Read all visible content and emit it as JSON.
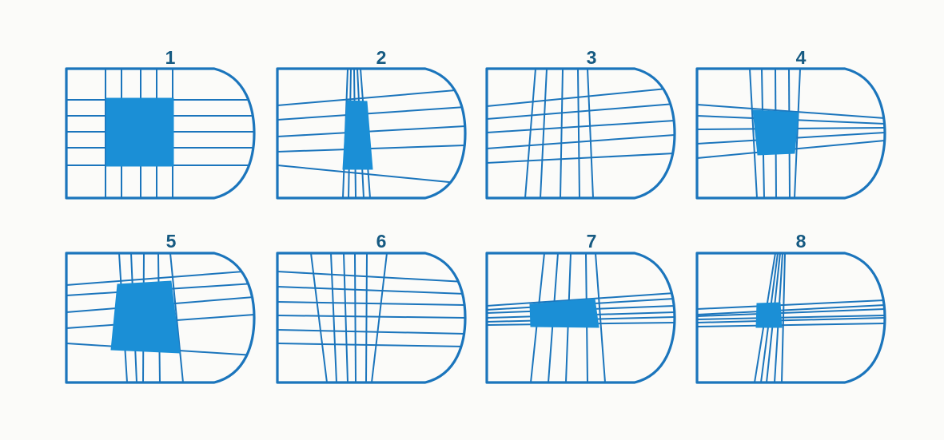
{
  "colors": {
    "outline": "#1b75bc",
    "fill": "#1b8fd6",
    "number": "#165a82",
    "background": "#fbfbf9"
  },
  "panels": [
    {
      "number": "1"
    },
    {
      "number": "2"
    },
    {
      "number": "3"
    },
    {
      "number": "4"
    },
    {
      "number": "5"
    },
    {
      "number": "6"
    },
    {
      "number": "7"
    },
    {
      "number": "8"
    }
  ]
}
